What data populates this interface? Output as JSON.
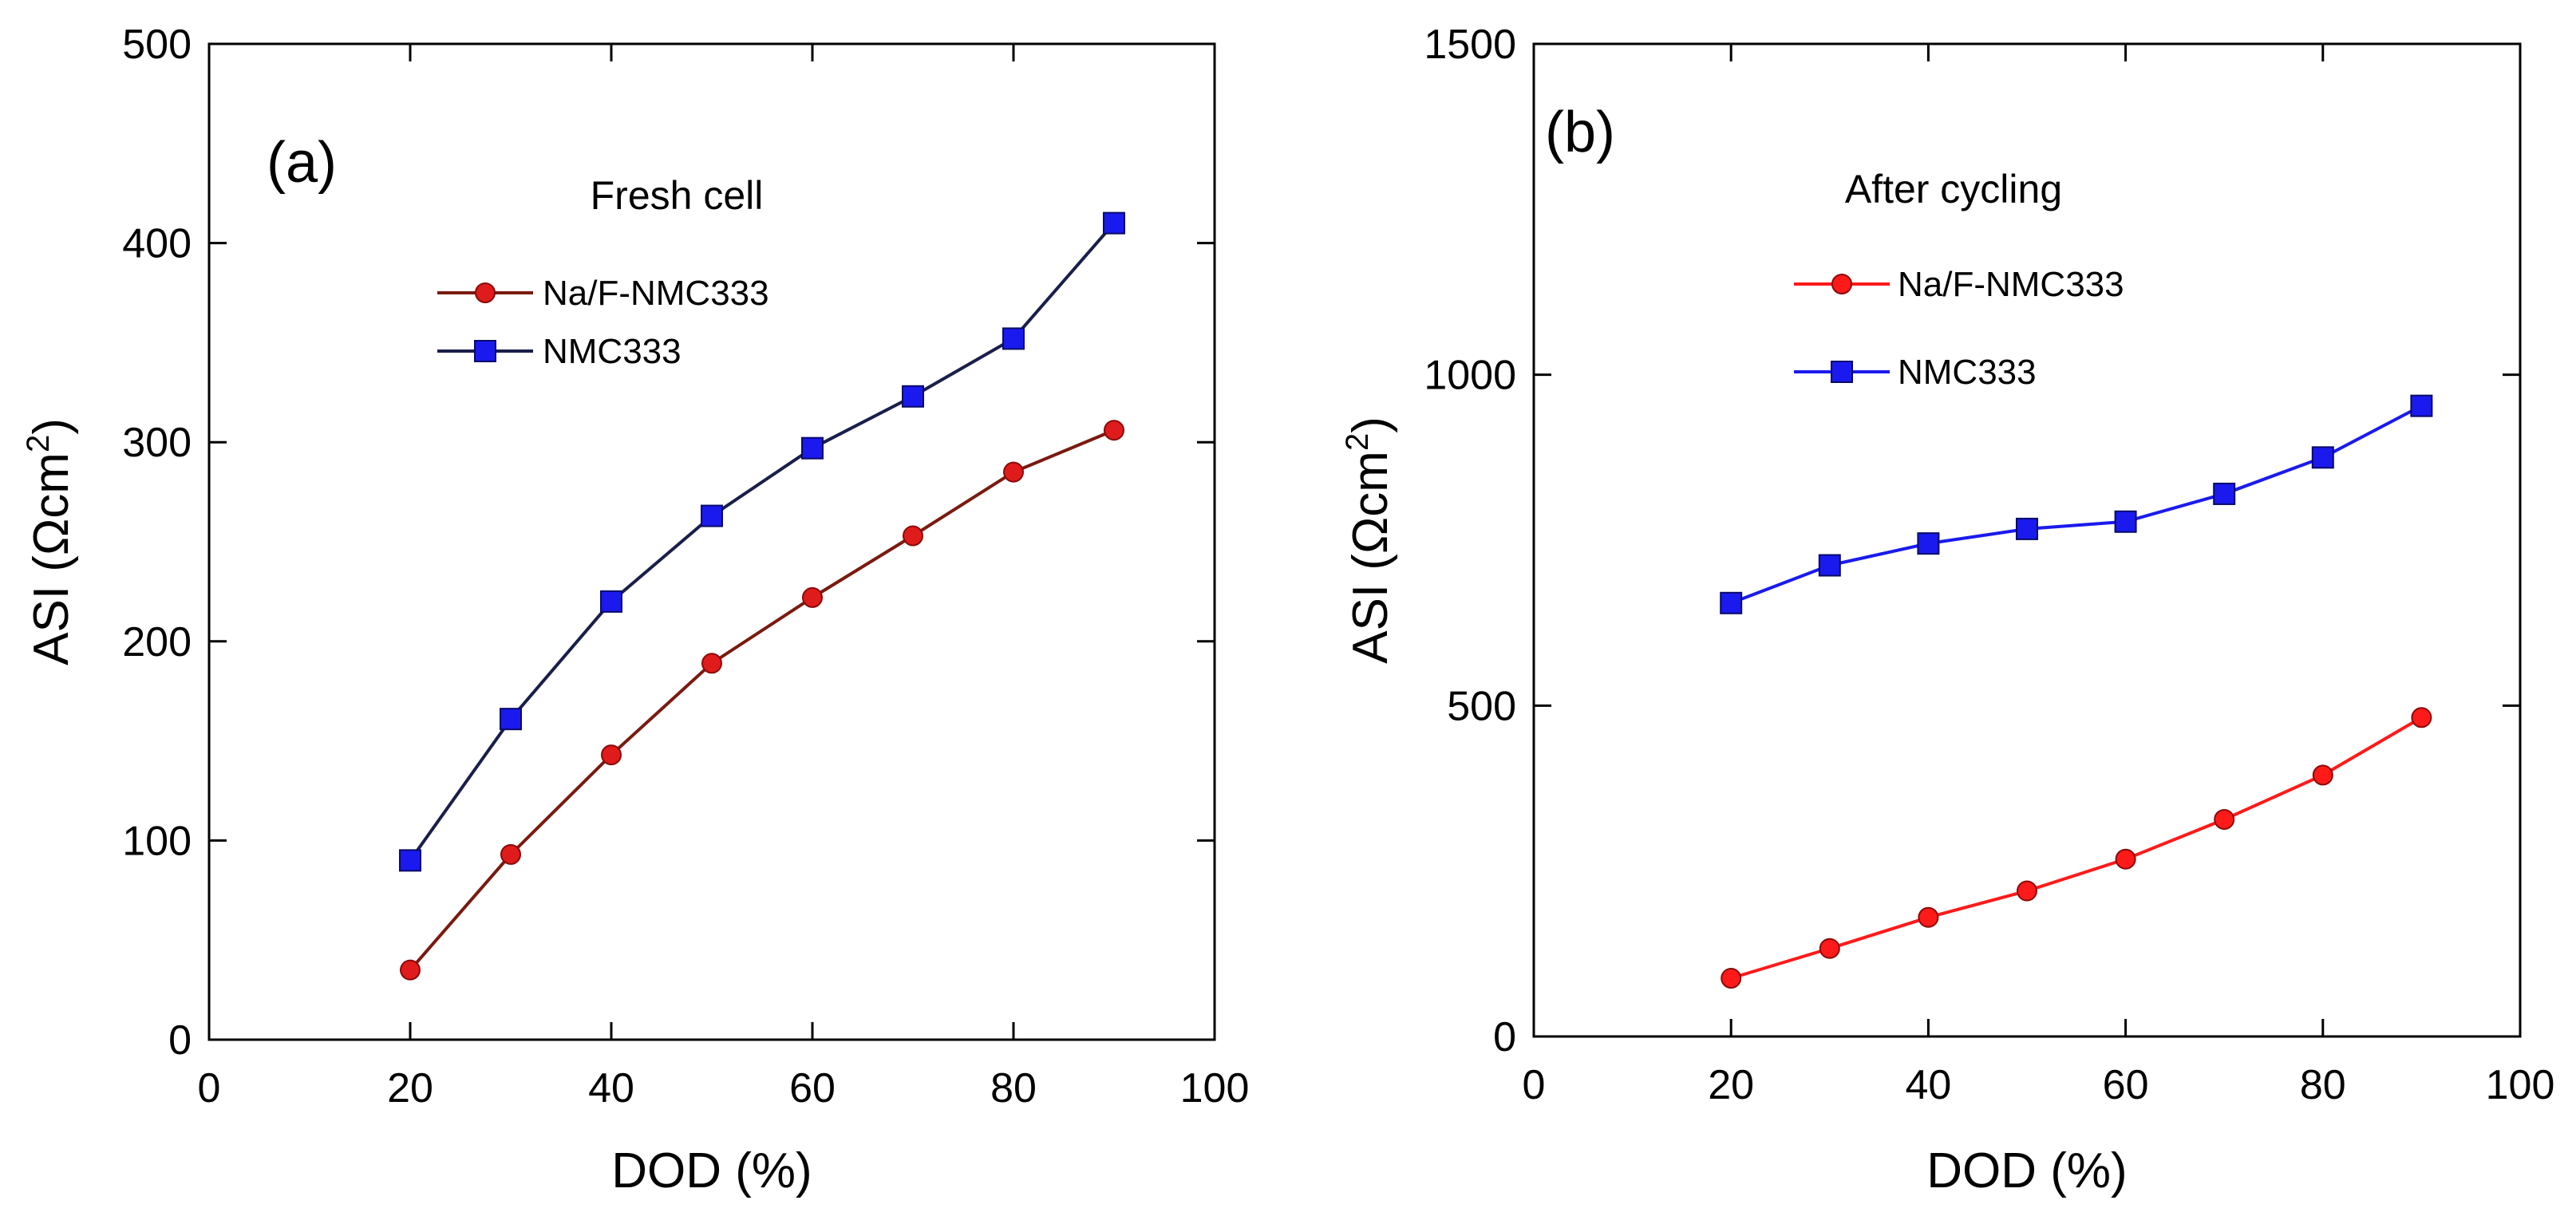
{
  "chart_data": [
    {
      "type": "line",
      "panel_label": "(a)",
      "title": "Fresh cell",
      "xlabel": "DOD (%)",
      "ylabel_main": "ASI (Ωcm",
      "ylabel_sup": "2",
      "ylabel_close": ")",
      "xlim": [
        0,
        100
      ],
      "ylim": [
        0,
        500
      ],
      "xticks": [
        0,
        20,
        40,
        60,
        80,
        100
      ],
      "yticks": [
        0,
        100,
        200,
        300,
        400,
        500
      ],
      "x": [
        20,
        30,
        40,
        50,
        60,
        70,
        80,
        90
      ],
      "grid": false,
      "legend_position": "upper-left",
      "series": [
        {
          "name": "Na/F-NMC333",
          "values": [
            35,
            93,
            143,
            189,
            222,
            253,
            285,
            306
          ],
          "marker": "circle",
          "color": "#e01b1b",
          "line_color": "#7a1a10",
          "text_color": "#6b1a12"
        },
        {
          "name": "NMC333",
          "values": [
            90,
            161,
            220,
            263,
            297,
            323,
            352,
            410
          ],
          "marker": "square",
          "color": "#1a1aee",
          "line_color": "#1a1e4a",
          "text_color": "#1a2a6e"
        }
      ]
    },
    {
      "type": "line",
      "panel_label": "(b)",
      "title": "After cycling",
      "xlabel": "DOD (%)",
      "ylabel_main": "ASI (Ωcm",
      "ylabel_sup": "2",
      "ylabel_close": ")",
      "xlim": [
        0,
        100
      ],
      "ylim": [
        0,
        1500
      ],
      "xticks": [
        0,
        20,
        40,
        60,
        80,
        100
      ],
      "yticks": [
        0,
        500,
        1000,
        1500
      ],
      "x": [
        20,
        30,
        40,
        50,
        60,
        70,
        80,
        90
      ],
      "grid": false,
      "legend_position": "upper-left",
      "series": [
        {
          "name": "Na/F-NMC333",
          "values": [
            88,
            133,
            180,
            220,
            268,
            328,
            395,
            482
          ],
          "marker": "circle",
          "color": "#ff1a1a",
          "line_color": "#ff1a1a",
          "text_color": "#ff2a2a"
        },
        {
          "name": "NMC333",
          "values": [
            655,
            712,
            745,
            767,
            778,
            820,
            875,
            953
          ],
          "marker": "square",
          "color": "#1a1aee",
          "line_color": "#1a1aee",
          "text_color": "#1a1aee"
        }
      ]
    }
  ]
}
